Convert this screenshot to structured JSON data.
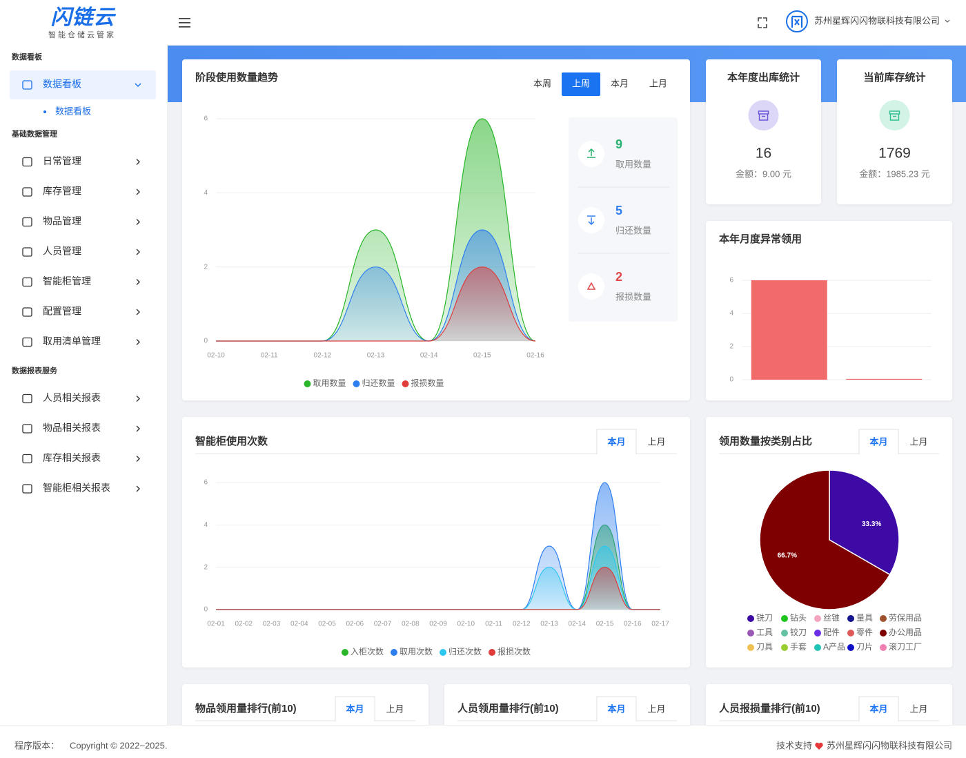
{
  "header": {
    "logo": "闪链云",
    "slogan": "智能仓储云管家",
    "company": "苏州星辉闪闪物联科技有限公司"
  },
  "sidebar": {
    "groups": [
      {
        "title": "数据看板",
        "items": [
          {
            "label": "数据看板",
            "children": [
              "数据看板"
            ]
          }
        ]
      },
      {
        "title": "基础数据管理",
        "items": [
          {
            "label": "日常管理"
          },
          {
            "label": "库存管理"
          },
          {
            "label": "物品管理"
          },
          {
            "label": "人员管理"
          },
          {
            "label": "智能柜管理"
          },
          {
            "label": "配置管理"
          },
          {
            "label": "取用清单管理"
          }
        ]
      },
      {
        "title": "数据报表服务",
        "items": [
          {
            "label": "人员相关报表"
          },
          {
            "label": "物品相关报表"
          },
          {
            "label": "库存相关报表"
          },
          {
            "label": "智能柜相关报表"
          }
        ]
      }
    ]
  },
  "stat_cards": [
    {
      "title": "本年度出库统计",
      "value": 16,
      "amount": "金额：9.00 元"
    },
    {
      "title": "当前库存统计",
      "value": 1769,
      "amount": "金额：1985.23 元"
    }
  ],
  "rank_cards": [
    {
      "title": "物品领用量排行(前10)",
      "tabs": [
        "本月",
        "上月"
      ],
      "active_tab": 0
    },
    {
      "title": "人员领用量排行(前10)",
      "tabs": [
        "本月",
        "上月"
      ],
      "active_tab": 0
    },
    {
      "title": "人员报损量排行(前10)",
      "tabs": [
        "本月",
        "上月"
      ],
      "active_tab": 0
    }
  ],
  "footer": {
    "version_label": "程序版本：",
    "copyright": "Copyright © 2022~2025.",
    "support": "技术支持",
    "company": "苏州星辉闪闪物联科技有限公司"
  },
  "chart_data": [
    {
      "type": "line",
      "title": "阶段使用数量趋势",
      "tabs": [
        "本周",
        "上周",
        "本月",
        "上月"
      ],
      "active_tab": 1,
      "categories": [
        "02-10",
        "02-11",
        "02-12",
        "02-13",
        "02-14",
        "02-15",
        "02-16"
      ],
      "series": [
        {
          "name": "取用数量",
          "color": "#2ab52a",
          "values": [
            0,
            0,
            0,
            3,
            0,
            6,
            0
          ]
        },
        {
          "name": "归还数量",
          "color": "#2f7ff0",
          "values": [
            0,
            0,
            0,
            2,
            0,
            3,
            0
          ]
        },
        {
          "name": "报损数量",
          "color": "#e03c3c",
          "values": [
            0,
            0,
            0,
            0,
            0,
            2,
            0
          ]
        }
      ],
      "ylim": [
        0,
        6
      ],
      "yticks": [
        0,
        2,
        4,
        6
      ],
      "grid": true,
      "smooth": true,
      "area": true,
      "summary": [
        {
          "name": "取用数量",
          "value": 9,
          "color": "#27b26f"
        },
        {
          "name": "归还数量",
          "value": 5,
          "color": "#2f7ff0"
        },
        {
          "name": "报损数量",
          "value": 2,
          "color": "#e04848"
        }
      ]
    },
    {
      "type": "bar",
      "title": "本年月度异常领用",
      "categories": [
        null,
        null
      ],
      "values": [
        6,
        0
      ],
      "color": "#f26b6b",
      "ylim": [
        0,
        6
      ],
      "yticks": [
        0,
        2,
        4,
        6
      ],
      "grid": true
    },
    {
      "type": "line",
      "title": "智能柜使用次数",
      "tabs": [
        "本月",
        "上月"
      ],
      "active_tab": 0,
      "categories": [
        "02-01",
        "02-02",
        "02-03",
        "02-04",
        "02-05",
        "02-06",
        "02-07",
        "02-08",
        "02-09",
        "02-10",
        "02-11",
        "02-12",
        "02-13",
        "02-14",
        "02-15",
        "02-16",
        "02-17"
      ],
      "series": [
        {
          "name": "入柜次数",
          "color": "#2ab52a",
          "values": [
            0,
            0,
            0,
            0,
            0,
            0,
            0,
            0,
            0,
            0,
            0,
            0,
            0,
            0,
            4,
            0,
            0
          ]
        },
        {
          "name": "取用次数",
          "color": "#2f7ff0",
          "values": [
            0,
            0,
            0,
            0,
            0,
            0,
            0,
            0,
            0,
            0,
            0,
            0,
            3,
            0,
            6,
            0,
            0
          ]
        },
        {
          "name": "归还次数",
          "color": "#2ec7f0",
          "values": [
            0,
            0,
            0,
            0,
            0,
            0,
            0,
            0,
            0,
            0,
            0,
            0,
            2,
            0,
            3,
            0,
            0
          ]
        },
        {
          "name": "报损次数",
          "color": "#e03c3c",
          "values": [
            0,
            0,
            0,
            0,
            0,
            0,
            0,
            0,
            0,
            0,
            0,
            0,
            0,
            0,
            2,
            0,
            0
          ]
        }
      ],
      "ylim": [
        0,
        6
      ],
      "yticks": [
        0,
        2,
        4,
        6
      ],
      "grid": true,
      "smooth": true,
      "area": true
    },
    {
      "type": "pie",
      "title": "领用数量按类别占比",
      "tabs": [
        "本月",
        "上月"
      ],
      "active_tab": 0,
      "categories": [
        "铣刀",
        "钻头",
        "丝锥",
        "量具",
        "劳保用品",
        "工具",
        "铰刀",
        "配件",
        "零件",
        "办公用品",
        "刀具",
        "手套",
        "A产品",
        "刀片",
        "滚刀工厂"
      ],
      "colors": [
        "#3d0aa6",
        "#1fc41f",
        "#f2a3bd",
        "#14148c",
        "#a0522d",
        "#9b59b6",
        "#66c2a5",
        "#6a2ee8",
        "#e05a5a",
        "#7e0000",
        "#f0c050",
        "#9acd32",
        "#20c4b4",
        "#1010c8",
        "#f080b0"
      ],
      "values": [
        33.3,
        0,
        0,
        0,
        0,
        0,
        0,
        0,
        0,
        66.7,
        0,
        0,
        0,
        0,
        0
      ],
      "value_labels": [
        "33.3%",
        null,
        null,
        null,
        null,
        null,
        null,
        null,
        null,
        "66.7%",
        null,
        null,
        null,
        null,
        null
      ]
    }
  ]
}
